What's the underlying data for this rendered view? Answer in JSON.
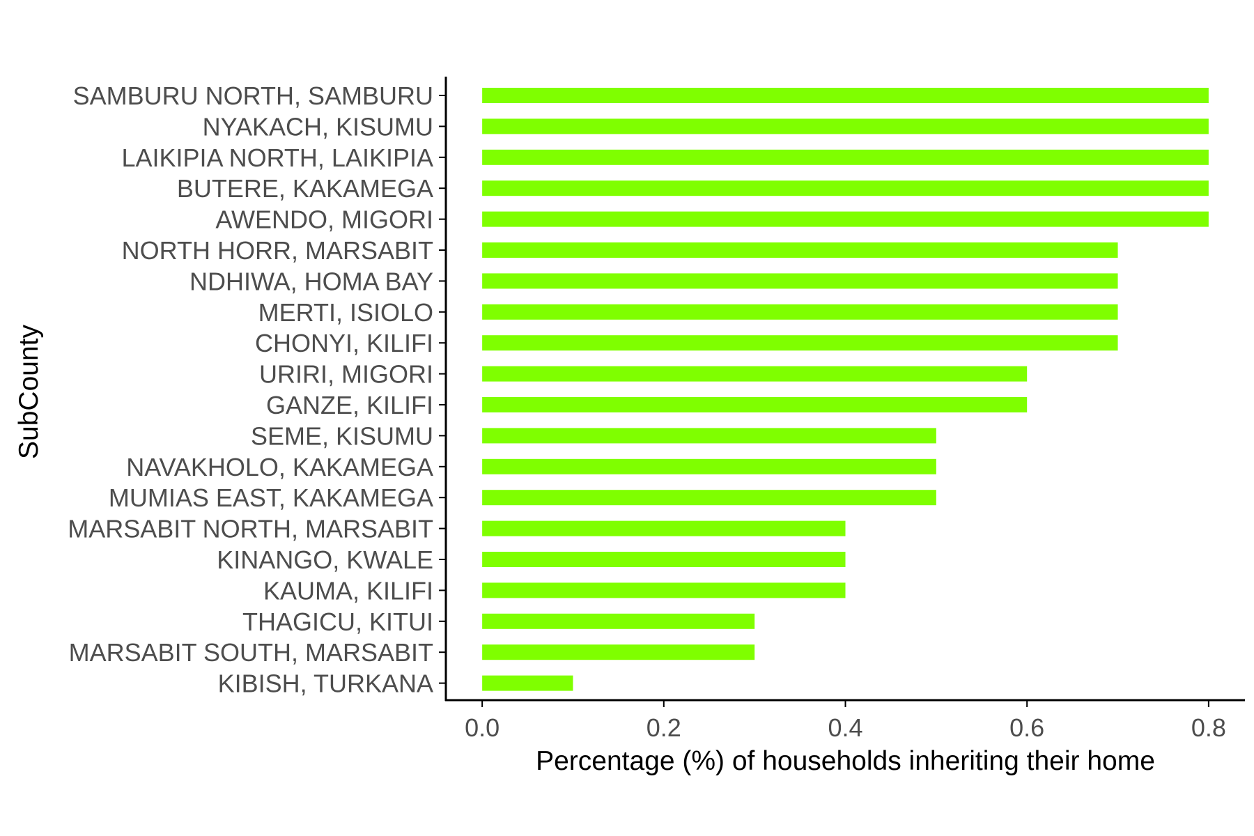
{
  "chart_data": {
    "type": "bar",
    "orientation": "horizontal",
    "title": "",
    "xlabel": "Percentage (%) of households inheriting their home",
    "ylabel": "SubCounty",
    "categories": [
      "SAMBURU NORTH, SAMBURU",
      "NYAKACH, KISUMU",
      "LAIKIPIA NORTH, LAIKIPIA",
      "BUTERE, KAKAMEGA",
      "AWENDO, MIGORI",
      "NORTH HORR, MARSABIT",
      "NDHIWA, HOMA BAY",
      "MERTI, ISIOLO",
      "CHONYI, KILIFI",
      "URIRI, MIGORI",
      "GANZE, KILIFI",
      "SEME, KISUMU",
      "NAVAKHOLO, KAKAMEGA",
      "MUMIAS EAST, KAKAMEGA",
      "MARSABIT NORTH, MARSABIT",
      "KINANGO, KWALE",
      "KAUMA, KILIFI",
      "THAGICU, KITUI",
      "MARSABIT SOUTH, MARSABIT",
      "KIBISH, TURKANA"
    ],
    "values": [
      0.8,
      0.8,
      0.8,
      0.8,
      0.8,
      0.7,
      0.7,
      0.7,
      0.7,
      0.6,
      0.6,
      0.5,
      0.5,
      0.5,
      0.4,
      0.4,
      0.4,
      0.3,
      0.3,
      0.1
    ],
    "xlim": [
      -0.04,
      0.84
    ],
    "xticks": [
      0.0,
      0.2,
      0.4,
      0.6,
      0.8
    ],
    "xtick_labels": [
      "0.0",
      "0.2",
      "0.4",
      "0.6",
      "0.8"
    ],
    "grid": false,
    "legend": "none",
    "bar_color": "#7fff00",
    "axis_color": "#000000",
    "tick_label_color": "#4d4d4d"
  }
}
